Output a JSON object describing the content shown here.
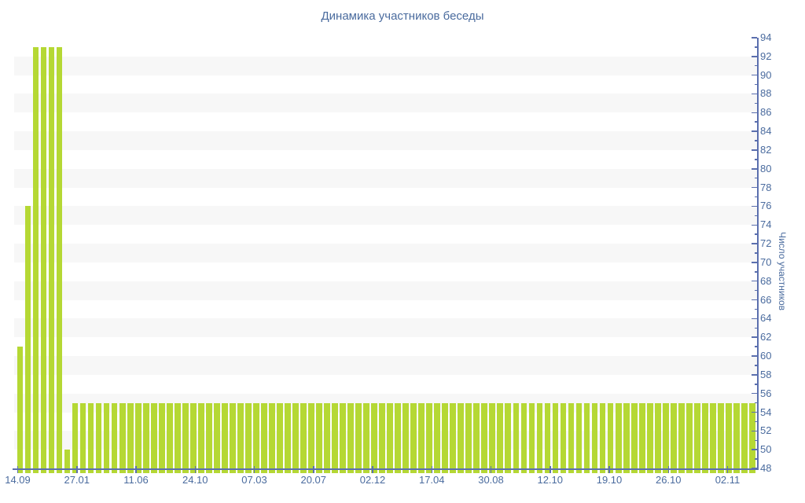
{
  "chart_data": {
    "type": "bar",
    "title": "Динамика участников беседы",
    "ylabel": "Число участников",
    "xlabel": "",
    "ylim": [
      48,
      94
    ],
    "ytick_major_step": 2,
    "ytick_minor_step": 1,
    "legend": "none",
    "grid": "alternating-horizontal-bands",
    "x_tick_labels": [
      "14.09",
      "27.01",
      "11.06",
      "24.10",
      "07.03",
      "20.07",
      "02.12",
      "17.04",
      "30.08",
      "12.10",
      "19.10",
      "26.10",
      "02.11"
    ],
    "values": [
      61,
      76,
      93,
      93,
      93,
      93,
      50,
      55,
      55,
      55,
      55,
      55,
      55,
      55,
      55,
      55,
      55,
      55,
      55,
      55,
      55,
      55,
      55,
      55,
      55,
      55,
      55,
      55,
      55,
      55,
      55,
      55,
      55,
      55,
      55,
      55,
      55,
      55,
      55,
      55,
      55,
      55,
      55,
      55,
      55,
      55,
      55,
      55,
      55,
      55,
      55,
      55,
      55,
      55,
      55,
      55,
      55,
      55,
      55,
      55,
      55,
      55,
      55,
      55,
      55,
      55,
      55,
      55,
      55,
      55,
      55,
      55,
      55,
      55,
      55,
      55,
      55,
      55,
      55,
      55,
      55,
      55,
      55,
      55,
      55,
      55,
      55,
      55,
      55,
      55,
      55,
      55,
      55,
      55
    ],
    "colors": {
      "bar": "#b5d834",
      "band": "#f7f7f7",
      "axis": "#5b6fae",
      "text": "#4a6b9e",
      "background": "#ffffff"
    }
  }
}
